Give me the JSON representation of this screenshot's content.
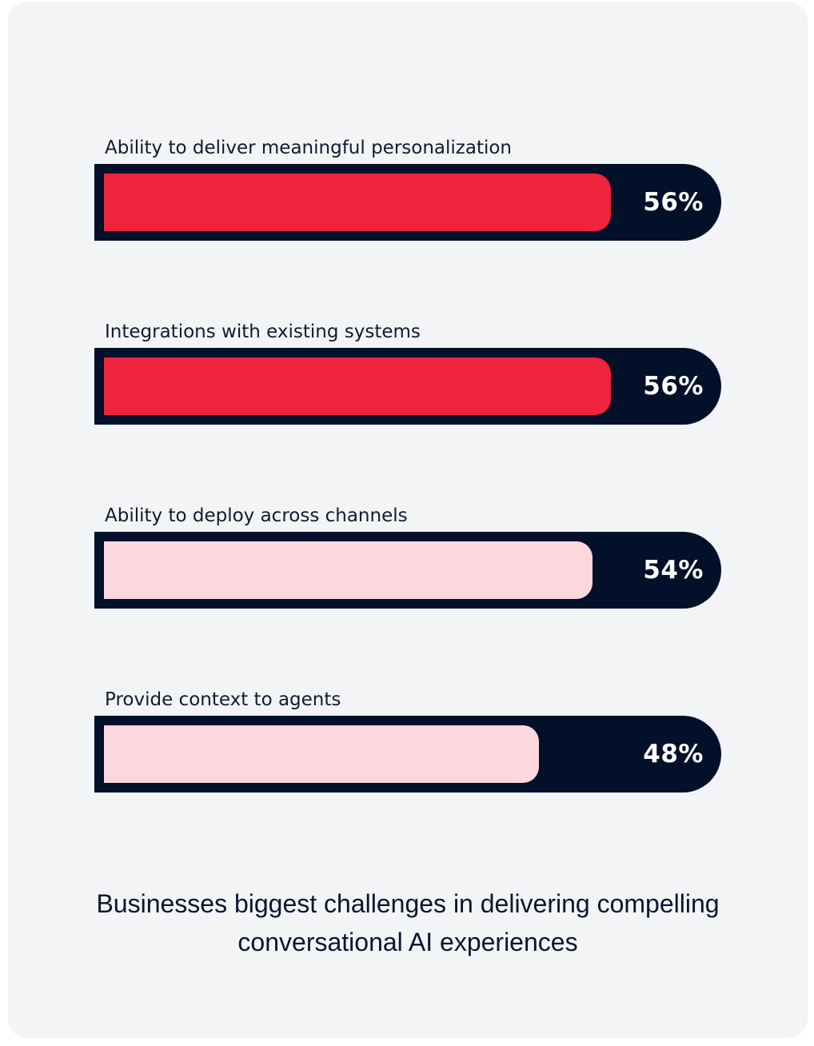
{
  "chart_data": {
    "type": "bar",
    "orientation": "horizontal",
    "title": "Businesses biggest challenges in delivering compelling conversational AI experiences",
    "categories": [
      "Ability to deliver meaningful personalization",
      "Integrations with existing systems",
      "Ability to deploy across channels",
      "Provide context to agents"
    ],
    "values": [
      56,
      56,
      54,
      48
    ],
    "value_labels": [
      "56%",
      "56%",
      "54%",
      "48%"
    ],
    "unit": "%",
    "xlim": [
      0,
      68
    ],
    "grid": false,
    "legend": "none"
  },
  "colors": {
    "highlight_fill": "#ee233c",
    "normal_fill": "#fdd7de",
    "track": "#02102a",
    "background": "#f3f4f6"
  },
  "highlighted": [
    true,
    true,
    false,
    false
  ]
}
